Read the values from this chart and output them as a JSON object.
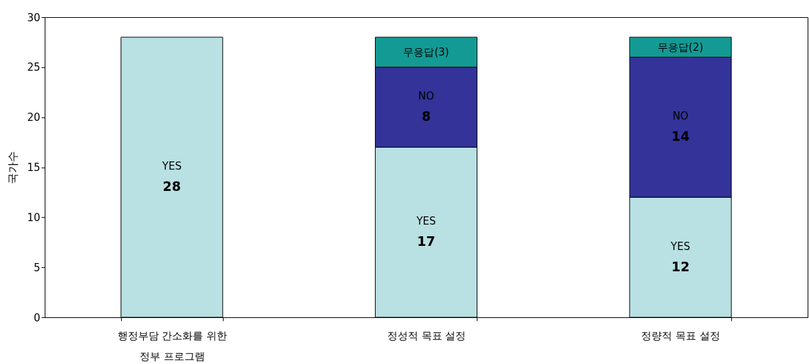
{
  "chart_data": {
    "type": "bar",
    "stacked": true,
    "ylabel": "국가수",
    "categories": [
      "행정부담 간소화를 위한\n정부 프로그램",
      "정성적 목표 설정",
      "정량적 목표 설정"
    ],
    "series": [
      {
        "name": "YES",
        "color": "#b9e0e2",
        "values": [
          28,
          17,
          12
        ],
        "value_labels": [
          "28",
          "17",
          "12"
        ]
      },
      {
        "name": "NO",
        "color": "#333399",
        "values": [
          null,
          8,
          14
        ],
        "value_labels": [
          null,
          "8",
          "14"
        ]
      },
      {
        "color": "#139a94",
        "values": [
          null,
          3,
          2
        ],
        "value_labels": [
          null,
          "무응답(3)",
          "무응답(2)"
        ]
      }
    ],
    "ylim": [
      0,
      30
    ],
    "yticks": [
      0,
      5,
      10,
      15,
      20,
      25,
      30
    ],
    "grid": false
  }
}
